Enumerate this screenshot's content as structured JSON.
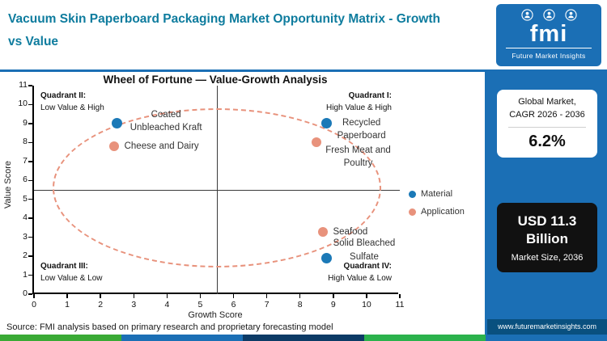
{
  "header": {
    "title": "Vacuum Skin Paperboard Packaging Market Opportunity Matrix - Growth vs Value",
    "logo": {
      "brand": "fmi",
      "tagline": "Future Market Insights"
    }
  },
  "sidebar": {
    "cagr_card": {
      "line1": "Global Market,",
      "line2": "CAGR 2026 - 2036",
      "value": "6.2%"
    },
    "size_card": {
      "value": "USD 11.3 Billion",
      "label": "Market Size, 2036"
    },
    "website": "www.futuremarketinsights.com"
  },
  "source_note": "Source: FMI analysis based on primary research and proprietary forecasting model",
  "chart_data": {
    "type": "scatter",
    "title": "Wheel of Fortune — Value-Growth Analysis",
    "xlabel": "Growth Score",
    "ylabel": "Value Score",
    "xlim": [
      0,
      11
    ],
    "ylim": [
      0,
      11
    ],
    "x_ticks": [
      0,
      1,
      2,
      3,
      4,
      5,
      6,
      7,
      8,
      9,
      10,
      11
    ],
    "y_ticks": [
      0,
      1,
      2,
      3,
      4,
      5,
      6,
      7,
      8,
      9,
      10,
      11
    ],
    "grid": false,
    "legend_position": "right",
    "crosshair": {
      "x": 5.5,
      "y": 5.5
    },
    "ellipse": {
      "cx": 5.5,
      "cy": 5.6,
      "rx": 4.95,
      "ry": 4.2,
      "color": "#e8927c",
      "style": "dashed"
    },
    "series": [
      {
        "name": "Material",
        "color": "#1b79b7",
        "marker_size": 13,
        "points": [
          {
            "label": "Coated\nUnbleached Kraft",
            "x": 2.5,
            "y": 9.0,
            "label_dx": 16,
            "label_dy": -19
          },
          {
            "label": "Recycled\nPaperboard",
            "x": 8.8,
            "y": 9.0,
            "label_dx": 13,
            "label_dy": -9
          },
          {
            "label": "Solid Bleached\nSulfate",
            "x": 8.8,
            "y": 1.9,
            "label_dx": 8,
            "label_dy": -26
          }
        ]
      },
      {
        "name": "Application",
        "color": "#e8927c",
        "marker_size": 12,
        "points": [
          {
            "label": "Cheese and Dairy",
            "x": 2.4,
            "y": 7.8,
            "label_dx": 13,
            "label_dy": -8
          },
          {
            "label": "Fresh Meat and\nPoultry",
            "x": 8.5,
            "y": 8.0,
            "label_dx": 11,
            "label_dy": 2
          },
          {
            "label": "Seafood",
            "x": 8.7,
            "y": 3.3,
            "label_dx": 12,
            "label_dy": -8
          }
        ]
      }
    ],
    "quadrants": [
      {
        "title": "Quadrant II:",
        "subtitle": "Low Value & High",
        "position": "top-left"
      },
      {
        "title": "Quadrant I:",
        "subtitle": "High Value & High",
        "position": "top-right"
      },
      {
        "title": "Quadrant III:",
        "subtitle": "Low Value & Low",
        "position": "bottom-left"
      },
      {
        "title": "Quadrant IV:",
        "subtitle": "High Value & Low",
        "position": "bottom-right"
      }
    ]
  },
  "colors": {
    "header_title": "#0e7c9e",
    "brand_blue": "#1b6fb5",
    "material": "#1b79b7",
    "application": "#e8927c",
    "size_card_bg": "#111111",
    "website_bar_bg": "#09507f"
  },
  "footer_stripe": [
    "#3aaa35",
    "#1b6fb5",
    "#0d3b66",
    "#2bb24c",
    "#1b6fb5"
  ]
}
